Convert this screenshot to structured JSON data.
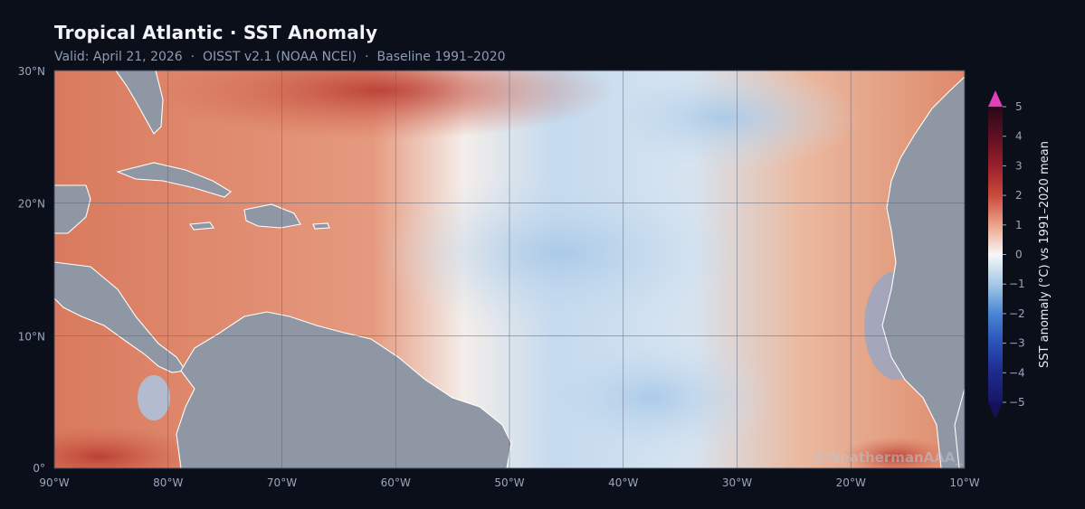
{
  "header": {
    "title": "Tropical Atlantic · SST Anomaly",
    "subtitle": "Valid: April 21, 2026  ·  OISST v2.1 (NOAA NCEI)  ·  Baseline 1991–2020"
  },
  "map": {
    "lon_ticks": [
      "90°W",
      "80°W",
      "70°W",
      "60°W",
      "50°W",
      "40°W",
      "30°W",
      "20°W",
      "10°W"
    ],
    "lat_ticks": [
      "30°N",
      "20°N",
      "10°N",
      "0°"
    ],
    "land_color": "#8e97a3",
    "ocean_warm_color": "#d9735a",
    "ocean_cool_color": "#b8d2ea",
    "watermark": "@WeathermanAAA_"
  },
  "colorbar": {
    "label": "SST anomaly (°C)  vs 1991–2020 mean",
    "ticks": [
      "5",
      "4",
      "3",
      "2",
      "1",
      "0",
      "−1",
      "−2",
      "−3",
      "−4",
      "−5"
    ],
    "colors": [
      "#e040b8",
      "#3a0a1e",
      "#8e1c2a",
      "#c9463a",
      "#e79a7a",
      "#f7f7f7",
      "#9ec3e3",
      "#3f7fd0",
      "#2548b0",
      "#1a1f78",
      "#15105a"
    ]
  }
}
